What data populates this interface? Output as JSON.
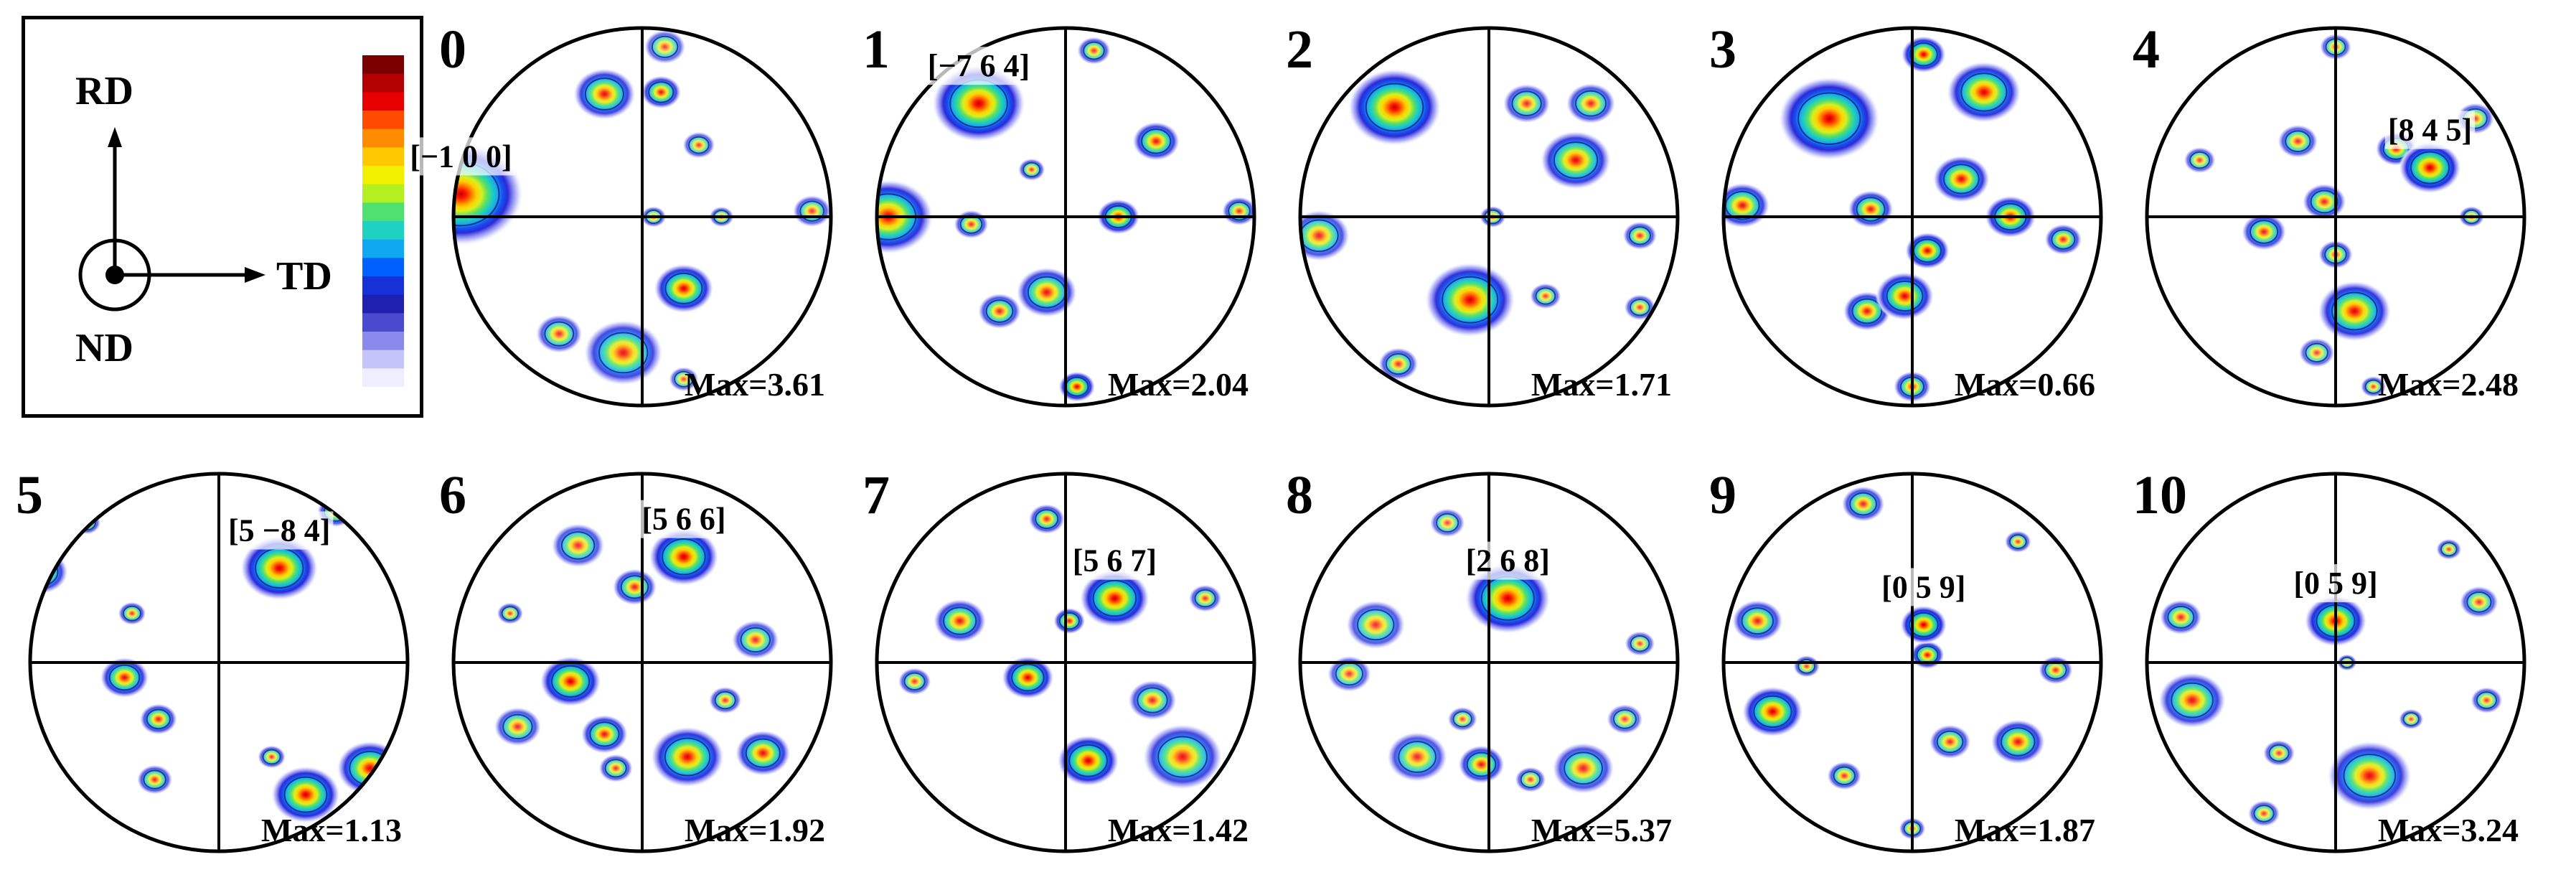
{
  "legend": {
    "rd": "RD",
    "td": "TD",
    "nd": "ND"
  },
  "colorbar": {
    "colors": [
      "#7a0000",
      "#b30000",
      "#e60000",
      "#ff4a00",
      "#ff8c00",
      "#ffc800",
      "#f0f000",
      "#b4f020",
      "#50e070",
      "#20d0c0",
      "#10a8f0",
      "#0060ff",
      "#1830d8",
      "#2020b0",
      "#4a4ad0",
      "#8a8aee",
      "#c4c4fa",
      "#eeeeff"
    ]
  },
  "panels": [
    {
      "number": "0",
      "max": "Max=3.61",
      "dir": "[−1 0 0]",
      "blobs": [
        [
          -0.96,
          0.12,
          0.16,
          3.61
        ],
        [
          -0.2,
          0.65,
          0.09,
          2.8
        ],
        [
          0.1,
          0.66,
          0.06,
          2.6
        ],
        [
          0.22,
          -0.38,
          0.08,
          3.3
        ],
        [
          -0.1,
          -0.72,
          0.12,
          2.5
        ],
        [
          -0.44,
          -0.62,
          0.08,
          1.8
        ],
        [
          0.3,
          0.38,
          0.06,
          1.4
        ],
        [
          0.12,
          0.9,
          0.08,
          1.2
        ],
        [
          0.42,
          0.0,
          0.05,
          1.0
        ],
        [
          0.9,
          0.03,
          0.07,
          1.5
        ],
        [
          0.06,
          0.0,
          0.05,
          1.1
        ],
        [
          0.22,
          -0.86,
          0.06,
          1.0
        ]
      ]
    },
    {
      "number": "1",
      "max": "Max=2.04",
      "dir": "[−7 6 4]",
      "blobs": [
        [
          -0.46,
          0.6,
          0.12,
          2.04
        ],
        [
          -0.94,
          0.0,
          0.12,
          1.9
        ],
        [
          0.28,
          0.0,
          0.06,
          1.7
        ],
        [
          0.48,
          0.4,
          0.07,
          1.5
        ],
        [
          -0.1,
          -0.4,
          0.09,
          1.5
        ],
        [
          -0.35,
          -0.5,
          0.07,
          1.2
        ],
        [
          0.06,
          -0.9,
          0.05,
          1.8
        ],
        [
          -0.5,
          -0.04,
          0.06,
          1.0
        ],
        [
          -0.18,
          0.25,
          0.05,
          0.8
        ],
        [
          0.15,
          0.88,
          0.06,
          0.9
        ],
        [
          0.92,
          0.03,
          0.06,
          1.0
        ]
      ]
    },
    {
      "number": "2",
      "max": "Max=1.71",
      "dir": "",
      "blobs": [
        [
          -0.5,
          0.58,
          0.12,
          1.71
        ],
        [
          -0.1,
          -0.44,
          0.12,
          1.6
        ],
        [
          0.46,
          0.3,
          0.1,
          1.4
        ],
        [
          0.54,
          0.6,
          0.08,
          1.0
        ],
        [
          -0.9,
          -0.1,
          0.1,
          1.0
        ],
        [
          0.2,
          0.6,
          0.08,
          0.9
        ],
        [
          -0.48,
          -0.78,
          0.07,
          0.8
        ],
        [
          0.8,
          -0.1,
          0.06,
          0.8
        ],
        [
          0.3,
          -0.42,
          0.06,
          0.6
        ],
        [
          0.8,
          -0.48,
          0.06,
          0.6
        ],
        [
          0.02,
          0.0,
          0.05,
          0.6
        ]
      ]
    },
    {
      "number": "3",
      "max": "Max=0.66",
      "dir": "",
      "blobs": [
        [
          -0.44,
          0.52,
          0.13,
          0.66
        ],
        [
          0.38,
          0.66,
          0.1,
          0.6
        ],
        [
          0.06,
          0.86,
          0.06,
          0.6
        ],
        [
          0.26,
          0.2,
          0.08,
          0.55
        ],
        [
          0.52,
          0.0,
          0.07,
          0.58
        ],
        [
          0.08,
          -0.18,
          0.06,
          0.6
        ],
        [
          -0.04,
          -0.42,
          0.08,
          0.58
        ],
        [
          -0.24,
          -0.5,
          0.07,
          0.5
        ],
        [
          -0.9,
          0.06,
          0.08,
          0.5
        ],
        [
          -0.22,
          0.04,
          0.07,
          0.45
        ],
        [
          0.0,
          -0.9,
          0.06,
          0.4
        ],
        [
          0.8,
          -0.12,
          0.06,
          0.4
        ]
      ]
    },
    {
      "number": "4",
      "max": "Max=2.48",
      "dir": "[8 4 5]",
      "blobs": [
        [
          0.5,
          0.26,
          0.08,
          2.48
        ],
        [
          0.32,
          0.36,
          0.06,
          1.9
        ],
        [
          0.1,
          -0.5,
          0.1,
          2.2
        ],
        [
          0.0,
          -0.2,
          0.06,
          1.2
        ],
        [
          -0.38,
          -0.08,
          0.07,
          1.6
        ],
        [
          -0.06,
          0.08,
          0.07,
          1.5
        ],
        [
          -0.2,
          0.4,
          0.07,
          1.2
        ],
        [
          0.74,
          0.52,
          0.07,
          1.0
        ],
        [
          -0.72,
          0.3,
          0.06,
          0.9
        ],
        [
          -0.1,
          -0.72,
          0.07,
          0.8
        ],
        [
          0.0,
          0.9,
          0.06,
          0.9
        ],
        [
          0.72,
          0.0,
          0.05,
          0.8
        ],
        [
          0.2,
          -0.9,
          0.05,
          0.8
        ]
      ]
    },
    {
      "number": "5",
      "max": "Max=1.13",
      "dir": "[5 −8 4]",
      "blobs": [
        [
          0.32,
          0.5,
          0.1,
          1.13
        ],
        [
          0.46,
          -0.7,
          0.09,
          1.1
        ],
        [
          0.8,
          -0.56,
          0.09,
          1.0
        ],
        [
          -0.5,
          -0.08,
          0.07,
          0.9
        ],
        [
          -0.94,
          0.48,
          0.08,
          0.8
        ],
        [
          0.62,
          0.8,
          0.06,
          0.7
        ],
        [
          -0.32,
          -0.3,
          0.06,
          0.7
        ],
        [
          -0.34,
          -0.62,
          0.06,
          0.6
        ],
        [
          0.28,
          -0.5,
          0.05,
          0.5
        ],
        [
          -0.7,
          0.74,
          0.05,
          0.5
        ],
        [
          -0.46,
          0.26,
          0.05,
          0.5
        ]
      ]
    },
    {
      "number": "6",
      "max": "Max=1.92",
      "dir": "[5 6 6]",
      "blobs": [
        [
          0.22,
          0.56,
          0.09,
          1.92
        ],
        [
          -0.38,
          -0.1,
          0.08,
          1.85
        ],
        [
          0.24,
          -0.5,
          0.1,
          1.7
        ],
        [
          0.64,
          -0.48,
          0.08,
          1.5
        ],
        [
          -0.2,
          -0.38,
          0.07,
          1.4
        ],
        [
          -0.04,
          0.4,
          0.07,
          1.2
        ],
        [
          0.6,
          0.12,
          0.08,
          1.0
        ],
        [
          -0.66,
          -0.34,
          0.08,
          1.0
        ],
        [
          -0.34,
          0.62,
          0.09,
          1.0
        ],
        [
          -0.14,
          -0.56,
          0.06,
          0.9
        ],
        [
          0.44,
          -0.2,
          0.06,
          0.8
        ],
        [
          -0.7,
          0.26,
          0.05,
          0.7
        ]
      ]
    },
    {
      "number": "7",
      "max": "Max=1.42",
      "dir": "[5 6 7]",
      "blobs": [
        [
          0.26,
          0.34,
          0.09,
          1.42
        ],
        [
          0.12,
          -0.52,
          0.08,
          1.4
        ],
        [
          -0.2,
          -0.08,
          0.07,
          1.3
        ],
        [
          -0.56,
          0.22,
          0.08,
          1.0
        ],
        [
          0.62,
          -0.5,
          0.12,
          1.0
        ],
        [
          0.46,
          -0.2,
          0.08,
          0.8
        ],
        [
          -0.1,
          0.76,
          0.06,
          0.8
        ],
        [
          0.74,
          0.34,
          0.06,
          0.6
        ],
        [
          -0.8,
          -0.1,
          0.06,
          0.6
        ],
        [
          0.02,
          0.22,
          0.05,
          0.9
        ]
      ]
    },
    {
      "number": "8",
      "max": "Max=5.37",
      "dir": "[2 6 8]",
      "blobs": [
        [
          0.1,
          0.34,
          0.11,
          5.37
        ],
        [
          -0.04,
          -0.54,
          0.07,
          3.8
        ],
        [
          -0.38,
          -0.5,
          0.1,
          3.0
        ],
        [
          0.5,
          -0.56,
          0.1,
          3.2
        ],
        [
          -0.6,
          0.2,
          0.1,
          2.8
        ],
        [
          -0.74,
          -0.06,
          0.08,
          2.2
        ],
        [
          -0.22,
          0.74,
          0.07,
          1.6
        ],
        [
          0.8,
          0.1,
          0.06,
          1.6
        ],
        [
          0.72,
          -0.3,
          0.07,
          1.8
        ],
        [
          0.22,
          -0.62,
          0.06,
          1.8
        ],
        [
          -0.14,
          -0.3,
          0.06,
          1.5
        ]
      ]
    },
    {
      "number": "9",
      "max": "Max=1.87",
      "dir": "[0 5 9]",
      "blobs": [
        [
          0.06,
          0.2,
          0.06,
          1.87
        ],
        [
          0.08,
          0.04,
          0.05,
          1.4
        ],
        [
          -0.74,
          -0.26,
          0.08,
          1.8
        ],
        [
          -0.82,
          0.22,
          0.08,
          1.2
        ],
        [
          0.56,
          -0.42,
          0.08,
          1.4
        ],
        [
          0.2,
          -0.42,
          0.07,
          1.0
        ],
        [
          -0.26,
          0.84,
          0.07,
          1.1
        ],
        [
          -0.36,
          -0.6,
          0.06,
          0.9
        ],
        [
          0.76,
          -0.04,
          0.06,
          0.9
        ],
        [
          0.56,
          0.64,
          0.05,
          0.7
        ],
        [
          0.0,
          -0.88,
          0.05,
          0.7
        ],
        [
          -0.56,
          -0.02,
          0.05,
          0.7
        ]
      ]
    },
    {
      "number": "10",
      "max": "Max=3.24",
      "dir": "[0 5 9]",
      "blobs": [
        [
          0.0,
          0.22,
          0.08,
          3.24
        ],
        [
          0.18,
          -0.6,
          0.12,
          2.6
        ],
        [
          -0.76,
          -0.2,
          0.1,
          2.4
        ],
        [
          -0.82,
          0.24,
          0.07,
          1.8
        ],
        [
          0.76,
          0.32,
          0.07,
          1.4
        ],
        [
          0.8,
          -0.2,
          0.06,
          1.2
        ],
        [
          -0.3,
          -0.48,
          0.06,
          1.2
        ],
        [
          0.4,
          -0.3,
          0.05,
          0.9
        ],
        [
          -0.38,
          -0.8,
          0.06,
          1.2
        ],
        [
          0.06,
          0.0,
          0.04,
          0.9
        ],
        [
          0.6,
          0.6,
          0.05,
          1.0
        ]
      ]
    }
  ]
}
